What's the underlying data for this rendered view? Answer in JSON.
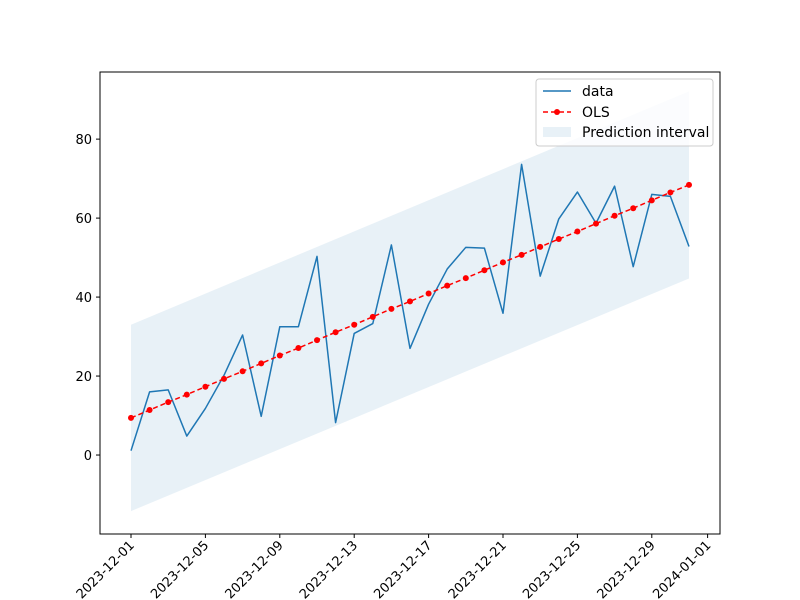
{
  "chart_data": {
    "type": "line",
    "title": "",
    "xlabel": "",
    "ylabel": "",
    "x_type": "date",
    "xlim": [
      "2023-11-29T08:00",
      "2024-01-01T16:00"
    ],
    "ylim": [
      -20,
      97
    ],
    "x_tick_labels": [
      "2023-12-01",
      "2023-12-05",
      "2023-12-09",
      "2023-12-13",
      "2023-12-17",
      "2023-12-21",
      "2023-12-25",
      "2023-12-29",
      "2024-01-01"
    ],
    "x_ticks": [
      "2023-12-01",
      "2023-12-05",
      "2023-12-09",
      "2023-12-13",
      "2023-12-17",
      "2023-12-21",
      "2023-12-25",
      "2023-12-29",
      "2024-01-01"
    ],
    "y_ticks": [
      0,
      20,
      40,
      60,
      80
    ],
    "y_tick_labels": [
      "0",
      "20",
      "40",
      "60",
      "80"
    ],
    "grid": false,
    "legend_position": "upper-right",
    "x": [
      "2023-12-01",
      "2023-12-02",
      "2023-12-03",
      "2023-12-04",
      "2023-12-05",
      "2023-12-06",
      "2023-12-07",
      "2023-12-08",
      "2023-12-09",
      "2023-12-10",
      "2023-12-11",
      "2023-12-12",
      "2023-12-13",
      "2023-12-14",
      "2023-12-15",
      "2023-12-16",
      "2023-12-17",
      "2023-12-18",
      "2023-12-19",
      "2023-12-20",
      "2023-12-21",
      "2023-12-22",
      "2023-12-23",
      "2023-12-24",
      "2023-12-25",
      "2023-12-26",
      "2023-12-27",
      "2023-12-28",
      "2023-12-29",
      "2023-12-30",
      "2023-12-31"
    ],
    "series": [
      {
        "name": "data",
        "kind": "line",
        "color": "#1f77b4",
        "values": [
          1.1,
          16.0,
          16.5,
          4.8,
          11.8,
          20.2,
          30.4,
          9.8,
          32.5,
          32.5,
          50.3,
          8.2,
          30.8,
          33.3,
          53.2,
          27.0,
          38.2,
          47.1,
          52.6,
          52.4,
          35.9,
          73.6,
          45.3,
          59.8,
          66.6,
          58.7,
          68.1,
          47.7,
          66.0,
          65.5,
          52.8
        ]
      },
      {
        "name": "OLS",
        "kind": "dashed-line-with-markers",
        "color": "#ff0000",
        "values": [
          9.4,
          11.4,
          13.4,
          15.3,
          17.3,
          19.3,
          21.2,
          23.2,
          25.2,
          27.1,
          29.1,
          31.1,
          33.0,
          35.0,
          37.0,
          38.9,
          40.9,
          42.9,
          44.8,
          46.8,
          48.8,
          50.7,
          52.7,
          54.7,
          56.6,
          58.6,
          60.6,
          62.5,
          64.5,
          66.5,
          68.4
        ]
      },
      {
        "name": "Prediction interval",
        "kind": "band",
        "color": "#1f77b4",
        "lower": [
          -14.2,
          44.7
        ],
        "upper": [
          33.0,
          92.1
        ]
      }
    ]
  }
}
